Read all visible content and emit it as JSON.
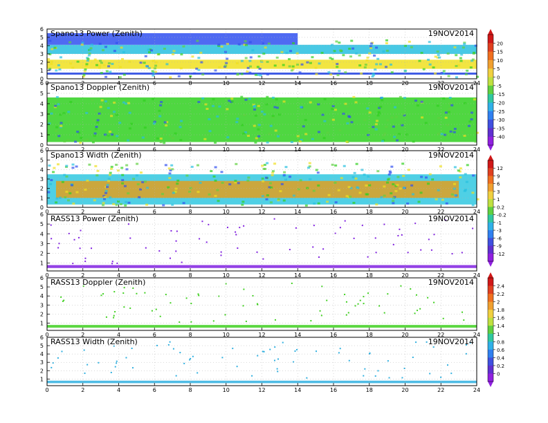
{
  "chart_data": [
    {
      "type": "heatmap",
      "title": "Spano13 Power (Zenith)",
      "date": "19NOV2014",
      "x_ticks": [
        0,
        2,
        4,
        6,
        8,
        10,
        12,
        14,
        16,
        18,
        20,
        22,
        24
      ],
      "y_ticks": [
        0,
        1,
        2,
        3,
        4,
        5,
        6
      ],
      "xlim": [
        0,
        24
      ],
      "ylim": [
        0,
        6
      ],
      "grid": true,
      "colorbar_id": "cb1",
      "bands": [
        {
          "y": [
            0.5,
            0.75
          ],
          "x": [
            0,
            24
          ],
          "color": "#2040e0"
        },
        {
          "y": [
            1.2,
            2.3
          ],
          "x": [
            0,
            24
          ],
          "color": "#f0e020"
        },
        {
          "y": [
            3.0,
            4.1
          ],
          "x": [
            0,
            24
          ],
          "color": "#28c0e0"
        },
        {
          "y": [
            4.1,
            5.5
          ],
          "x": [
            0,
            14
          ],
          "color": "#3050f0"
        }
      ]
    },
    {
      "type": "heatmap",
      "title": "Spano13 Doppler (Zenith)",
      "date": "19NOV2014",
      "x_ticks": [
        0,
        2,
        4,
        6,
        8,
        10,
        12,
        14,
        16,
        18,
        20,
        22,
        24
      ],
      "y_ticks": [
        0,
        1,
        2,
        3,
        4,
        5,
        6
      ],
      "xlim": [
        0,
        24
      ],
      "ylim": [
        0,
        6
      ],
      "grid": true,
      "colorbar_id": "cb1",
      "bands": [
        {
          "y": [
            0.3,
            4.6
          ],
          "x": [
            0,
            24
          ],
          "color": "#30d020"
        }
      ]
    },
    {
      "type": "heatmap",
      "title": "Spano13 Width (Zenith)",
      "date": "19NOV2014",
      "x_ticks": [
        0,
        2,
        4,
        6,
        8,
        10,
        12,
        14,
        16,
        18,
        20,
        22,
        24
      ],
      "y_ticks": [
        0,
        1,
        2,
        3,
        4,
        5,
        6
      ],
      "xlim": [
        0,
        24
      ],
      "ylim": [
        0,
        6
      ],
      "grid": true,
      "colorbar_id": "cb2",
      "bands": [
        {
          "y": [
            0.3,
            3.5
          ],
          "x": [
            0,
            24
          ],
          "color": "#30c8e0"
        },
        {
          "y": [
            1.0,
            2.8
          ],
          "x": [
            0.5,
            23
          ],
          "color": "#e0a020"
        }
      ]
    },
    {
      "type": "scatter",
      "title": "RASS13 Power (Zenith)",
      "date": "19NOV2014",
      "x_ticks": [
        0,
        2,
        4,
        6,
        8,
        10,
        12,
        14,
        16,
        18,
        20,
        22,
        24
      ],
      "y_ticks": [
        1,
        2,
        3,
        4,
        5,
        6
      ],
      "xlim": [
        0,
        24
      ],
      "ylim": [
        0.2,
        6
      ],
      "grid": true,
      "colorbar_id": "cb2",
      "band": {
        "y": [
          0.5,
          0.8
        ],
        "color": "#8020e0"
      }
    },
    {
      "type": "scatter",
      "title": "RASS13 Doppler (Zenith)",
      "date": "19NOV2014",
      "x_ticks": [
        0,
        2,
        4,
        6,
        8,
        10,
        12,
        14,
        16,
        18,
        20,
        22,
        24
      ],
      "y_ticks": [
        1,
        2,
        3,
        4,
        5,
        6
      ],
      "xlim": [
        0,
        24
      ],
      "ylim": [
        0.2,
        6
      ],
      "grid": true,
      "colorbar_id": "cb3",
      "band": {
        "y": [
          0.5,
          0.8
        ],
        "color": "#40d020"
      }
    },
    {
      "type": "scatter",
      "title": "RASS13 Width (Zenith)",
      "date": "19NOV2014",
      "x_ticks": [
        0,
        2,
        4,
        6,
        8,
        10,
        12,
        14,
        16,
        18,
        20,
        22,
        24
      ],
      "y_ticks": [
        1,
        2,
        3,
        4,
        5,
        6
      ],
      "xlim": [
        0,
        24
      ],
      "ylim": [
        0.2,
        6
      ],
      "grid": true,
      "colorbar_id": "cb3",
      "band": {
        "y": [
          0.5,
          0.8
        ],
        "color": "#30b0e0"
      }
    }
  ],
  "colorbars": [
    {
      "id": "cb1",
      "labels": [
        "20",
        "15",
        "10",
        "5",
        "0",
        "-5",
        "-15",
        "-20",
        "-25",
        "-30",
        "-35",
        "-40"
      ],
      "colors": [
        "#d01818",
        "#e04020",
        "#f07020",
        "#f0a030",
        "#f0d040",
        "#c0e040",
        "#60d040",
        "#30c8a0",
        "#30b0e8",
        "#3080f0",
        "#4050e0",
        "#6030d0",
        "#9020e0"
      ]
    },
    {
      "id": "cb2",
      "labels": [
        "12",
        "9",
        "6",
        "3",
        "1",
        "0.2",
        "-0.2",
        "-1",
        "-3",
        "-6",
        "-9",
        "-12"
      ],
      "colors": [
        "#d01818",
        "#e04020",
        "#f07020",
        "#f0a030",
        "#f0d040",
        "#c0e040",
        "#60d040",
        "#30c8a0",
        "#30b0e8",
        "#3080f0",
        "#4050e0",
        "#6030d0",
        "#9020e0"
      ]
    },
    {
      "id": "cb3",
      "labels": [
        "2.4",
        "2.2",
        "2",
        "1.8",
        "1.6",
        "1.4",
        "1",
        "0.8",
        "0.6",
        "0.4",
        "0.2",
        "0"
      ],
      "colors": [
        "#d01818",
        "#e04020",
        "#f07020",
        "#f0a030",
        "#f0d040",
        "#c0e040",
        "#60d040",
        "#30c8a0",
        "#30b0e8",
        "#3080f0",
        "#4050e0",
        "#6030d0",
        "#9020e0"
      ]
    }
  ]
}
